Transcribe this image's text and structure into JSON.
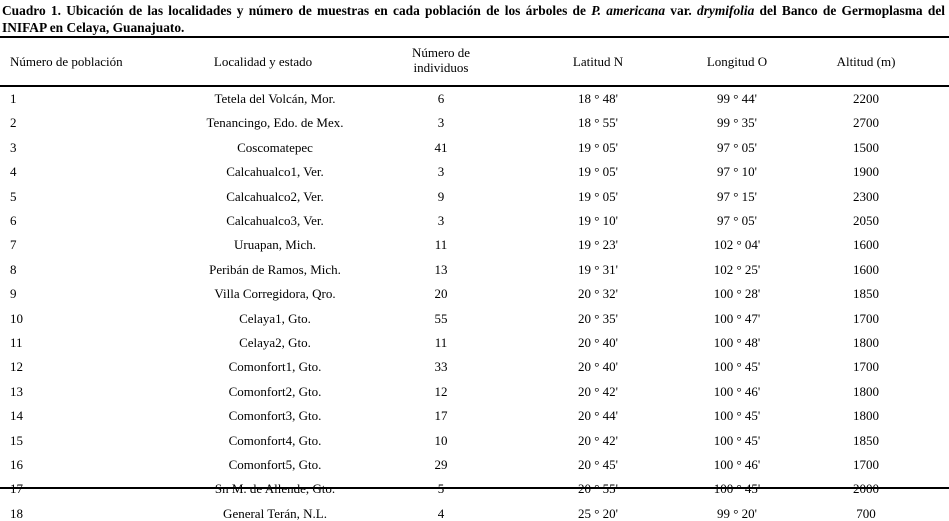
{
  "caption": {
    "prefix": "Cuadro 1. Ubicación de las localidades y número de muestras en cada población de los árboles de ",
    "species": "P. americana",
    "var": " var. ",
    "variety": "drymifolia",
    "suffix": " del Banco de Germoplasma del INIFAP en Celaya, Guanajuato."
  },
  "headers": [
    "Número de población",
    "Localidad y estado",
    "Número de individuos",
    "Latitud N",
    "Longitud O",
    "Altitud (m)"
  ],
  "rows": [
    [
      "1",
      "Tetela del Volcán, Mor.",
      "6",
      "18 ° 48'",
      "99 ° 44'",
      "2200"
    ],
    [
      "2",
      "Tenancingo, Edo. de Mex.",
      "3",
      "18 ° 55'",
      "99 ° 35'",
      "2700"
    ],
    [
      "3",
      "Coscomatepec",
      "41",
      "19 ° 05'",
      "97 ° 05'",
      "1500"
    ],
    [
      "4",
      "Calcahualco1, Ver.",
      "3",
      "19 ° 05'",
      "97 ° 10'",
      "1900"
    ],
    [
      "5",
      "Calcahualco2, Ver.",
      "9",
      "19 ° 05'",
      "97 ° 15'",
      "2300"
    ],
    [
      "6",
      "Calcahualco3, Ver.",
      "3",
      "19 ° 10'",
      "97 ° 05'",
      "2050"
    ],
    [
      "7",
      "Uruapan, Mich.",
      "11",
      "19 ° 23'",
      "102 ° 04'",
      "1600"
    ],
    [
      "8",
      "Peribán de Ramos, Mich.",
      "13",
      "19 ° 31'",
      "102 ° 25'",
      "1600"
    ],
    [
      "9",
      "Villa Corregidora, Qro.",
      "20",
      "20 ° 32'",
      "100 ° 28'",
      "1850"
    ],
    [
      "10",
      "Celaya1, Gto.",
      "55",
      "20 ° 35'",
      "100 ° 47'",
      "1700"
    ],
    [
      "11",
      "Celaya2, Gto.",
      "11",
      "20 ° 40'",
      "100 ° 48'",
      "1800"
    ],
    [
      "12",
      "Comonfort1, Gto.",
      "33",
      "20 ° 40'",
      "100 ° 45'",
      "1700"
    ],
    [
      "13",
      "Comonfort2, Gto.",
      "12",
      "20 ° 42'",
      "100 ° 46'",
      "1800"
    ],
    [
      "14",
      "Comonfort3, Gto.",
      "17",
      "20 ° 44'",
      "100 ° 45'",
      "1800"
    ],
    [
      "15",
      "Comonfort4, Gto.",
      "10",
      "20 ° 42'",
      "100 ° 45'",
      "1850"
    ],
    [
      "16",
      "Comonfort5, Gto.",
      "29",
      "20 ° 45'",
      "100 ° 46'",
      "1700"
    ],
    [
      "17",
      "Sn M. de Allende, Gto.",
      "5",
      "20 ° 55'",
      "100 ° 45'",
      "2000"
    ],
    [
      "18",
      "General Terán, N.L.",
      "4",
      "25 ° 20'",
      "99 ° 20'",
      "700"
    ]
  ]
}
